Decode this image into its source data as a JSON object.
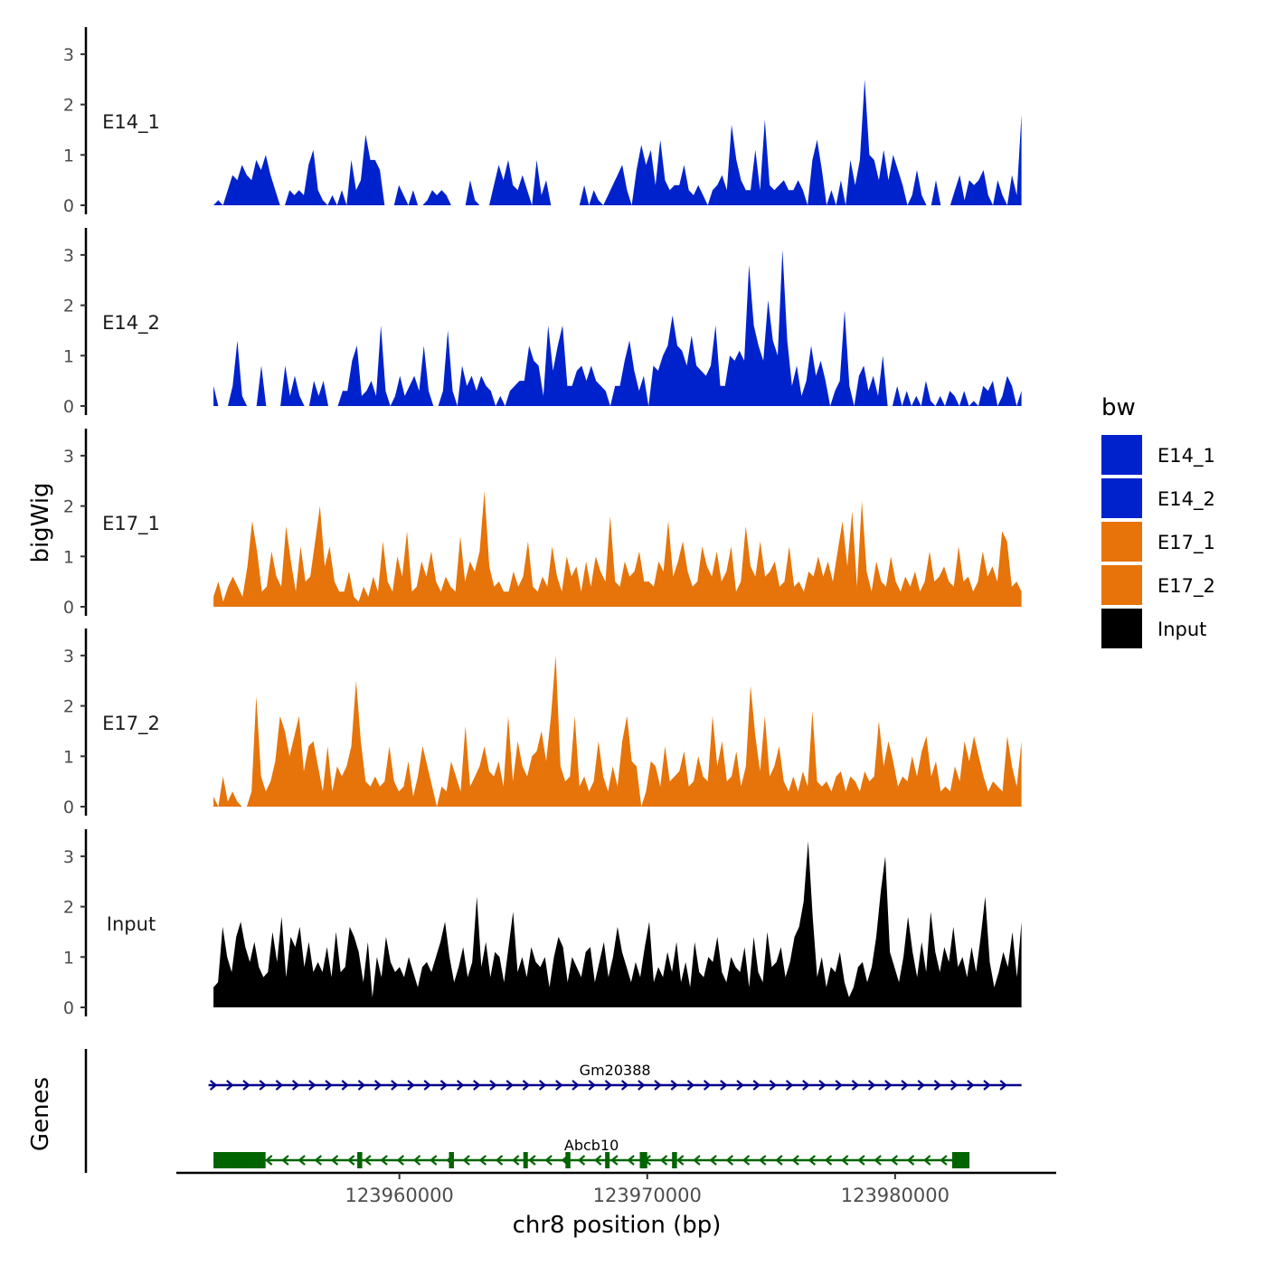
{
  "chart_data": {
    "type": "area",
    "chromosome": "chr8",
    "xlabel": "chr8 position (bp)",
    "ylabel": "bigWig",
    "genes_label": "Genes",
    "xlim": [
      123951000,
      123986500
    ],
    "x_ticks": [
      123960000,
      123970000,
      123980000
    ],
    "x_tick_labels": [
      "123960000",
      "123970000",
      "123980000"
    ],
    "ylim": [
      0,
      3.4
    ],
    "y_ticks": [
      0,
      1,
      2,
      3
    ],
    "y_tick_labels": [
      "0",
      "1",
      "2",
      "3"
    ],
    "x_start": 123952500,
    "x_end": 123985100,
    "legend": {
      "title": "bw",
      "entries": [
        {
          "label": "E14_1",
          "color": "#0022cc"
        },
        {
          "label": "E14_2",
          "color": "#0022cc"
        },
        {
          "label": "E17_1",
          "color": "#e6740a"
        },
        {
          "label": "E17_2",
          "color": "#e6740a"
        },
        {
          "label": "Input",
          "color": "#000000"
        }
      ]
    },
    "series": [
      {
        "name": "E14_1",
        "color": "#0022cc",
        "values": [
          0,
          0.1,
          0,
          0.3,
          0.6,
          0.5,
          0.8,
          0.6,
          0.5,
          0.9,
          0.7,
          1.0,
          0.6,
          0.3,
          0,
          0,
          0.3,
          0.2,
          0.3,
          0.2,
          0.8,
          1.1,
          0.3,
          0.1,
          0,
          0.2,
          0,
          0.3,
          0,
          0.9,
          0.3,
          0.5,
          1.4,
          0.9,
          0.9,
          0.7,
          0,
          0,
          0,
          0.4,
          0.2,
          0,
          0.3,
          0,
          0,
          0.1,
          0.3,
          0.2,
          0.3,
          0.2,
          0,
          0,
          0,
          0,
          0.5,
          0.1,
          0,
          0,
          0,
          0.4,
          0.8,
          0.5,
          0.9,
          0.4,
          0.3,
          0.6,
          0.3,
          0,
          0.9,
          0.2,
          0.5,
          0,
          0,
          0,
          0,
          0,
          0,
          0,
          0.4,
          0,
          0.3,
          0.1,
          0,
          0.2,
          0.4,
          0.6,
          0.8,
          0.3,
          0,
          0.7,
          1.2,
          0.8,
          1.1,
          0.4,
          1.3,
          0.5,
          0.3,
          0.4,
          0.4,
          0.8,
          0.3,
          0.2,
          0.4,
          0.2,
          0,
          0.3,
          0.4,
          0.6,
          0.3,
          1.6,
          0.9,
          0.5,
          0.3,
          0.3,
          1.1,
          0.3,
          1.7,
          0.4,
          0.3,
          0.4,
          0.5,
          0.3,
          0.3,
          0.5,
          0.3,
          0,
          0.9,
          1.3,
          0.7,
          0,
          0.3,
          0,
          0.5,
          0,
          0.9,
          0.4,
          0.9,
          2.5,
          1.0,
          0.9,
          0.5,
          1.1,
          0.5,
          1.0,
          0.7,
          0.4,
          0,
          0.2,
          0.7,
          0.2,
          0,
          0,
          0.5,
          0,
          0,
          0,
          0.3,
          0.6,
          0.1,
          0.5,
          0.4,
          0.5,
          0.7,
          0.2,
          0,
          0.5,
          0.2,
          0,
          0.6,
          0.2,
          1.8
        ]
      },
      {
        "name": "E14_2",
        "color": "#0022cc",
        "values": [
          0.4,
          0,
          0,
          0,
          0.4,
          1.3,
          0.2,
          0,
          0,
          0,
          0.8,
          0,
          0,
          0,
          0,
          0.8,
          0.2,
          0.6,
          0.2,
          0,
          0,
          0.5,
          0.2,
          0.5,
          0,
          0,
          0,
          0.3,
          0.3,
          0.9,
          1.2,
          0.2,
          0.3,
          0.5,
          0.2,
          1.6,
          0.3,
          0,
          0.2,
          0.6,
          0.2,
          0.4,
          0.6,
          0.3,
          1.2,
          0.3,
          0,
          0,
          0.3,
          1.5,
          0.3,
          0,
          0.8,
          0.4,
          0.6,
          0.3,
          0.6,
          0.4,
          0.3,
          0,
          0.2,
          0,
          0.3,
          0.4,
          0.5,
          0.5,
          1.2,
          0.9,
          0.8,
          0.2,
          1.6,
          0.7,
          1.2,
          1.6,
          0.4,
          0.4,
          0.7,
          0.8,
          0.5,
          0.8,
          0.5,
          0.4,
          0.3,
          0,
          0.4,
          0.4,
          0.9,
          1.3,
          0.7,
          0.3,
          0.6,
          0,
          0.8,
          0.7,
          1.0,
          1.2,
          1.8,
          1.2,
          1.1,
          0.8,
          1.4,
          0.8,
          0.7,
          0.6,
          0.8,
          1.6,
          0.4,
          0.4,
          1.0,
          0.9,
          1.1,
          0.9,
          2.8,
          1.6,
          1.2,
          0.9,
          2.1,
          1.3,
          1.0,
          3.1,
          1.3,
          0.4,
          0.8,
          0.2,
          0.5,
          1.2,
          0.6,
          0.9,
          0.5,
          0,
          0.3,
          0.5,
          1.9,
          0.4,
          0,
          0.6,
          0.8,
          0.3,
          0.6,
          0.2,
          1.0,
          0,
          0,
          0.4,
          0,
          0.3,
          0,
          0.2,
          0,
          0.5,
          0.1,
          0,
          0.2,
          0,
          0.3,
          0.2,
          0,
          0.3,
          0,
          0.1,
          0,
          0.4,
          0.3,
          0.5,
          0,
          0.2,
          0.6,
          0.4,
          0,
          0.3
        ]
      },
      {
        "name": "E17_1",
        "color": "#e6740a",
        "values": [
          0.2,
          0.5,
          0.1,
          0.4,
          0.6,
          0.4,
          0.2,
          0.8,
          1.7,
          1.1,
          0.3,
          0.4,
          1.1,
          0.6,
          0.4,
          1.6,
          0.9,
          0.3,
          1.2,
          0.5,
          0.6,
          1.3,
          2.0,
          0.8,
          1.2,
          0.5,
          0.3,
          0.3,
          0.7,
          0.2,
          0.1,
          0.4,
          0.2,
          0.6,
          0.3,
          1.3,
          0.5,
          0.3,
          1.0,
          0.6,
          1.5,
          0.3,
          0.4,
          0.9,
          0.6,
          1.1,
          0.5,
          0.3,
          0.6,
          0.4,
          0.3,
          1.4,
          0.5,
          0.9,
          0.7,
          1.1,
          2.3,
          0.8,
          0.4,
          0.5,
          0.3,
          0.3,
          0.7,
          0.4,
          0.6,
          1.3,
          0.4,
          0.3,
          0.6,
          0.4,
          1.2,
          0.6,
          0.3,
          1.0,
          0.6,
          0.8,
          0.3,
          0.9,
          0.4,
          1.0,
          0.7,
          0.5,
          1.8,
          0.5,
          0.4,
          0.9,
          0.6,
          0.7,
          1.1,
          0.5,
          0.5,
          0.4,
          0.9,
          0.7,
          1.7,
          0.6,
          0.9,
          1.3,
          0.7,
          0.4,
          0.5,
          1.2,
          0.8,
          0.6,
          1.1,
          0.5,
          0.7,
          1.2,
          0.3,
          0.5,
          1.6,
          0.8,
          0.6,
          1.3,
          0.6,
          0.7,
          0.9,
          0.4,
          0.5,
          1.2,
          0.4,
          0.5,
          0.3,
          0.7,
          0.6,
          1.0,
          0.6,
          0.9,
          0.5,
          1.1,
          1.7,
          0.8,
          1.9,
          0.4,
          2.1,
          0.7,
          0.3,
          0.9,
          0.5,
          0.4,
          1.0,
          0.5,
          0.3,
          0.6,
          0.4,
          0.7,
          0.3,
          0.5,
          1.1,
          0.5,
          0.6,
          0.8,
          0.5,
          0.4,
          1.2,
          0.5,
          0.6,
          0.3,
          0.5,
          1.1,
          0.6,
          0.8,
          0.5,
          1.5,
          1.3,
          0.4,
          0.5,
          0.3
        ]
      },
      {
        "name": "E17_2",
        "color": "#e6740a",
        "values": [
          0.2,
          0,
          0.6,
          0.1,
          0.3,
          0.1,
          0,
          0,
          0.3,
          2.2,
          0.6,
          0.3,
          0.5,
          0.9,
          1.8,
          1.5,
          1.0,
          1.4,
          1.8,
          0.7,
          1.2,
          1.3,
          0.8,
          0.3,
          1.2,
          0.3,
          0.8,
          0.6,
          0.8,
          1.2,
          2.5,
          1.3,
          0.5,
          0.4,
          0.6,
          0.4,
          0.5,
          1.2,
          0.5,
          0.3,
          0.4,
          0.9,
          0.2,
          0.6,
          1.2,
          0.8,
          0.4,
          0,
          0.4,
          0.3,
          0.9,
          0.6,
          0.3,
          1.6,
          0.4,
          0.6,
          0.8,
          1.2,
          0.7,
          0.6,
          0.9,
          0.4,
          1.8,
          0.5,
          1.3,
          0.8,
          0.6,
          1.0,
          1.1,
          1.5,
          0.9,
          1.8,
          3.0,
          0.8,
          0.5,
          0.6,
          1.8,
          0.4,
          0.6,
          0.3,
          0.5,
          1.3,
          0.6,
          0.3,
          0.8,
          0.4,
          1.3,
          1.8,
          0.9,
          0.8,
          0,
          0.3,
          0.9,
          0.8,
          0.4,
          1.2,
          0.5,
          0.6,
          0.7,
          1.1,
          0.4,
          0.5,
          1.0,
          0.6,
          0.5,
          1.8,
          0.8,
          1.3,
          0.5,
          0.6,
          1.1,
          0.4,
          0.8,
          2.4,
          1.4,
          0.7,
          1.8,
          0.6,
          0.8,
          1.2,
          0.5,
          0.3,
          0.6,
          0.3,
          0.7,
          0.4,
          1.9,
          0.5,
          0.4,
          0.5,
          0.3,
          0.6,
          0.7,
          0.3,
          0.6,
          0.5,
          0.3,
          0.7,
          0.5,
          0.6,
          1.7,
          0.8,
          1.3,
          0.9,
          0.4,
          0.6,
          0.5,
          1.0,
          0.6,
          1.1,
          1.4,
          0.6,
          0.9,
          0.3,
          0.4,
          0.3,
          0.8,
          0.5,
          1.3,
          0.9,
          1.4,
          1.0,
          0.6,
          0.3,
          0.5,
          0.4,
          0.3,
          1.4,
          0.8,
          0.4,
          1.3
        ]
      },
      {
        "name": "Input",
        "color": "#000000",
        "values": [
          0.4,
          0.5,
          1.6,
          1.0,
          0.7,
          1.4,
          1.7,
          1.2,
          0.9,
          1.3,
          0.8,
          0.6,
          0.7,
          1.5,
          0.9,
          1.8,
          0.6,
          1.4,
          1.2,
          1.6,
          0.8,
          1.3,
          0.7,
          0.9,
          0.7,
          1.2,
          0.6,
          1.5,
          0.7,
          0.8,
          1.6,
          1.4,
          1.1,
          0.5,
          1.3,
          0.2,
          1.0,
          0.6,
          1.4,
          0.9,
          0.7,
          0.8,
          0.6,
          1.0,
          0.7,
          0.4,
          0.8,
          0.9,
          0.7,
          1.0,
          1.3,
          1.7,
          1.0,
          0.5,
          0.8,
          1.2,
          0.6,
          0.9,
          2.2,
          0.8,
          1.3,
          0.6,
          1.1,
          1.0,
          0.5,
          1.2,
          1.9,
          0.7,
          1.0,
          0.6,
          1.2,
          0.9,
          0.8,
          1.0,
          0.4,
          1.0,
          1.4,
          1.2,
          0.5,
          1.0,
          0.8,
          0.6,
          1.1,
          1.2,
          0.5,
          0.9,
          1.3,
          0.6,
          1.0,
          1.6,
          1.1,
          0.8,
          0.5,
          0.9,
          0.6,
          1.2,
          1.7,
          0.5,
          0.8,
          0.6,
          1.1,
          0.7,
          1.3,
          0.5,
          0.9,
          0.4,
          1.3,
          0.7,
          0.6,
          1.0,
          0.9,
          1.4,
          0.7,
          0.5,
          1.0,
          0.8,
          0.7,
          1.2,
          0.4,
          1.4,
          0.7,
          0.5,
          1.5,
          0.8,
          0.9,
          1.2,
          0.6,
          0.9,
          1.4,
          1.6,
          2.1,
          3.3,
          1.8,
          0.6,
          1.0,
          0.4,
          0.8,
          0.7,
          1.1,
          0.5,
          0.2,
          0.4,
          0.8,
          0.9,
          0.5,
          0.8,
          1.4,
          2.3,
          3.0,
          1.1,
          0.8,
          0.5,
          1.0,
          1.8,
          1.1,
          0.6,
          1.3,
          0.7,
          1.9,
          1.1,
          0.7,
          1.2,
          0.9,
          1.6,
          0.8,
          1.0,
          0.6,
          1.2,
          0.7,
          1.4,
          2.2,
          0.9,
          0.4,
          0.7,
          1.1,
          0.8,
          1.5,
          0.6,
          1.7
        ]
      }
    ],
    "genes": [
      {
        "name": "Gm20388",
        "strand": "+",
        "start": 123952300,
        "end": 123985100,
        "color": "#00008b",
        "exons": []
      },
      {
        "name": "Abcb10",
        "strand": "-",
        "start": 123952500,
        "end": 123983000,
        "color": "#006400",
        "exons": [
          [
            123952500,
            123954600
          ],
          [
            123958300,
            123958500
          ],
          [
            123962000,
            123962200
          ],
          [
            123965000,
            123965100
          ],
          [
            123966700,
            123966900
          ],
          [
            123968300,
            123968400
          ],
          [
            123969700,
            123970000
          ],
          [
            123971000,
            123971200
          ],
          [
            123982300,
            123983000
          ]
        ]
      }
    ]
  }
}
